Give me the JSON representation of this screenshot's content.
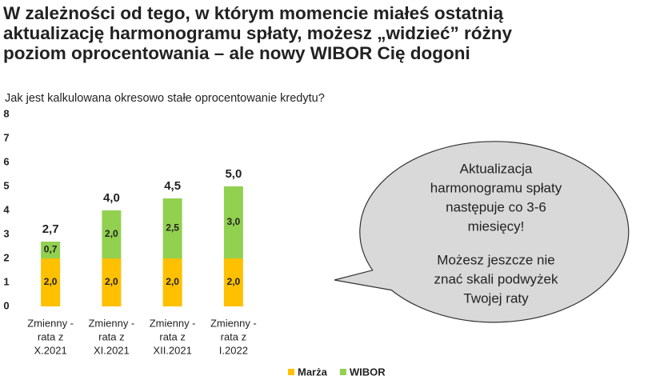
{
  "chart_data": {
    "type": "stacked-bar",
    "title": [
      "W zależności od tego, w którym momencie miałeś ostatnią",
      "aktualizację harmonogramu spłaty, możesz „widzieć” różny",
      "poziom oprocentowania – ale nowy WIBOR Cię dogoni"
    ],
    "subtitle": "Jak jest kalkulowana okresowo stałe oprocentowanie kredytu?",
    "categories": [
      [
        "Zmienny -",
        "rata z",
        "X.2021"
      ],
      [
        "Zmienny -",
        "rata z",
        "XI.2021"
      ],
      [
        "Zmienny -",
        "rata z",
        "XII.2021"
      ],
      [
        "Zmienny -",
        "rata z",
        "I.2022"
      ]
    ],
    "series": [
      {
        "name": "Marża",
        "color": "#FFC000",
        "values": [
          2.0,
          2.0,
          2.0,
          2.0
        ],
        "value_labels": [
          "2,0",
          "2,0",
          "2,0",
          "2,0"
        ]
      },
      {
        "name": "WIBOR",
        "color": "#92D050",
        "values": [
          0.7,
          2.0,
          2.5,
          3.0
        ],
        "value_labels": [
          "0,7",
          "2,0",
          "2,5",
          "3,0"
        ]
      }
    ],
    "totals": [
      2.7,
      4.0,
      4.5,
      5.0
    ],
    "total_labels": [
      "2,7",
      "4,0",
      "4,5",
      "5,0"
    ],
    "ylim": [
      0,
      8
    ],
    "yticks": [
      0,
      1,
      2,
      3,
      4,
      5,
      6,
      7,
      8
    ],
    "callout": [
      [
        "Aktualizacja",
        "harmonogramu spłaty",
        "następuje co 3-6",
        "miesięcy!"
      ],
      [
        "Możesz jeszcze nie",
        "znać skali podwyżek",
        "Twojej raty"
      ]
    ]
  }
}
